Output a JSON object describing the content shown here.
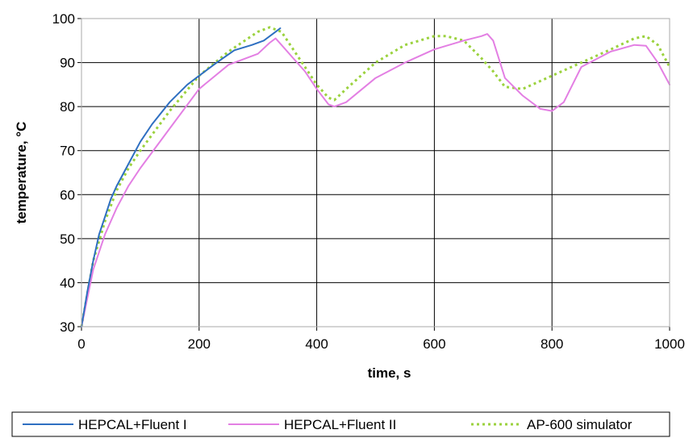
{
  "chart_data": {
    "type": "line",
    "title": "",
    "xlabel": "time, s",
    "ylabel": "temperature, °C",
    "xlim": [
      0,
      1000
    ],
    "ylim": [
      30,
      100
    ],
    "xticks": [
      0,
      200,
      400,
      600,
      800,
      1000
    ],
    "yticks": [
      30,
      40,
      50,
      60,
      70,
      80,
      90,
      100
    ],
    "grid": true,
    "legend_position": "bottom",
    "series": [
      {
        "name": "HEPCAL+Fluent I",
        "color": "#2e6fc1",
        "style": "solid",
        "x": [
          0,
          10,
          20,
          30,
          40,
          50,
          60,
          80,
          100,
          120,
          150,
          180,
          200,
          230,
          260,
          290,
          310,
          330,
          338
        ],
        "y": [
          30,
          38,
          45,
          51,
          55,
          59,
          62,
          67,
          72,
          76,
          81,
          85,
          87,
          90,
          92.8,
          94,
          95,
          97,
          97.8
        ]
      },
      {
        "name": "HEPCAL+Fluent II",
        "color": "#e37fe3",
        "style": "solid",
        "x": [
          0,
          20,
          40,
          60,
          80,
          100,
          150,
          200,
          250,
          300,
          320,
          330,
          340,
          360,
          380,
          400,
          420,
          430,
          450,
          500,
          550,
          600,
          650,
          680,
          690,
          700,
          720,
          750,
          780,
          800,
          820,
          850,
          900,
          940,
          960,
          980,
          1000
        ],
        "y": [
          30,
          43,
          51,
          57,
          62,
          66,
          75,
          84,
          89.5,
          92,
          94.5,
          95.5,
          94,
          91,
          88,
          84,
          80.5,
          80,
          81,
          86.5,
          90,
          93,
          95,
          96,
          96.5,
          95,
          86.5,
          82.5,
          79.5,
          79,
          81,
          89,
          92.5,
          94,
          93.8,
          90,
          85
        ]
      },
      {
        "name": "AP-600 simulator",
        "color": "#9bd23e",
        "style": "dotted",
        "x": [
          0,
          20,
          40,
          60,
          80,
          100,
          150,
          200,
          250,
          300,
          320,
          340,
          360,
          380,
          400,
          420,
          430,
          450,
          500,
          550,
          600,
          620,
          650,
          680,
          700,
          720,
          750,
          800,
          850,
          900,
          940,
          960,
          980,
          1000
        ],
        "y": [
          30,
          45,
          54,
          61,
          66,
          70,
          79,
          87,
          92.5,
          97,
          98,
          97,
          93,
          89,
          85,
          82,
          81.5,
          84,
          90,
          94,
          96,
          96,
          95,
          91,
          88,
          84.5,
          84,
          87,
          90,
          93,
          95.5,
          96,
          94,
          89
        ]
      }
    ]
  }
}
